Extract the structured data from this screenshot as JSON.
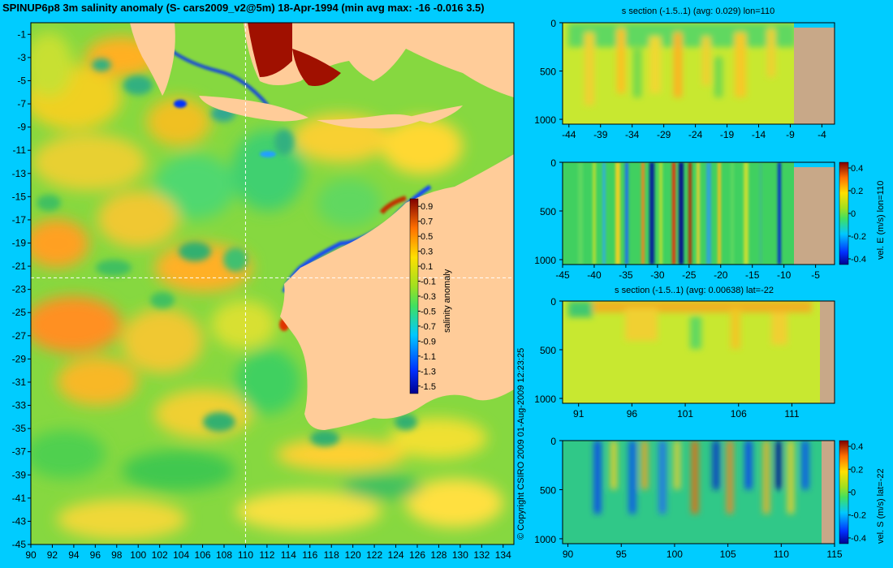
{
  "colors": {
    "background": "#00ccff",
    "land": "#ffcc99",
    "land_section": "#c8a888",
    "base_field": "#86d840"
  },
  "chart_data": [
    {
      "type": "heatmap",
      "title": "SPINUP6p8 3m salinity anomaly (S- cars2009_v2@5m) 18-Apr-1994 (min avg max: -16 -0.016 3.5)",
      "x_ticks": [
        "90",
        "92",
        "94",
        "96",
        "98",
        "100",
        "102",
        "104",
        "106",
        "108",
        "110",
        "112",
        "114",
        "116",
        "118",
        "120",
        "122",
        "124",
        "126",
        "128",
        "130",
        "132",
        "134"
      ],
      "y_ticks": [
        "-1",
        "-3",
        "-5",
        "-7",
        "-9",
        "-11",
        "-13",
        "-15",
        "-17",
        "-19",
        "-21",
        "-23",
        "-25",
        "-27",
        "-29",
        "-31",
        "-33",
        "-35",
        "-37",
        "-39",
        "-41",
        "-43",
        "-45"
      ],
      "xlim": [
        90,
        135
      ],
      "ylim": [
        -45,
        0
      ],
      "crosshair": {
        "lon": 110,
        "lat": -22
      },
      "colorbar": {
        "label": "salinity anomaly",
        "ticks": [
          "0.9",
          "0.7",
          "0.5",
          "0.3",
          "0.1",
          "-0.1",
          "-0.3",
          "-0.5",
          "-0.7",
          "-0.9",
          "-1.1",
          "-1.3",
          "-1.5"
        ],
        "range": [
          -1.6,
          1.0
        ]
      },
      "copyright": "© Copyright CSIRO 2009   01-Aug-2009 12:23:25"
    },
    {
      "type": "heatmap",
      "title": "s section (-1.5..1) (avg: 0.029) lon=110",
      "x_ticks": [
        "-44",
        "-39",
        "-34",
        "-29",
        "-24",
        "-19",
        "-14",
        "-9",
        "-4"
      ],
      "y_ticks": [
        "0",
        "500",
        "1000"
      ],
      "xlim": [
        -45,
        -2
      ],
      "ylim": [
        1050,
        0
      ]
    },
    {
      "type": "heatmap",
      "title": "",
      "x_ticks": [
        "-45",
        "-40",
        "-35",
        "-30",
        "-25",
        "-20",
        "-15",
        "-10",
        "-5"
      ],
      "y_ticks": [
        "0",
        "500",
        "1000"
      ],
      "xlim": [
        -45,
        -2
      ],
      "ylim": [
        1050,
        0
      ],
      "colorbar": {
        "label": "vel. E (m/s) lon=110",
        "ticks": [
          "0.4",
          "0.2",
          "0",
          "-0.2",
          "-0.4"
        ],
        "range": [
          -0.45,
          0.45
        ]
      }
    },
    {
      "type": "heatmap",
      "title": "s section (-1.5..1) (avg: 0.00638) lat=-22",
      "x_ticks": [
        "91",
        "96",
        "101",
        "106",
        "111"
      ],
      "y_ticks": [
        "0",
        "500",
        "1000"
      ],
      "xlim": [
        89.5,
        115
      ],
      "ylim": [
        1050,
        0
      ]
    },
    {
      "type": "heatmap",
      "title": "",
      "x_ticks": [
        "90",
        "95",
        "100",
        "105",
        "110",
        "115"
      ],
      "y_ticks": [
        "0",
        "500",
        "1000"
      ],
      "xlim": [
        89.5,
        115
      ],
      "ylim": [
        1050,
        0
      ],
      "colorbar": {
        "label": "vel. S (m/s) lat=-22",
        "ticks": [
          "0.4",
          "0.2",
          "0",
          "-0.2",
          "-0.4"
        ],
        "range": [
          -0.45,
          0.45
        ]
      }
    }
  ]
}
